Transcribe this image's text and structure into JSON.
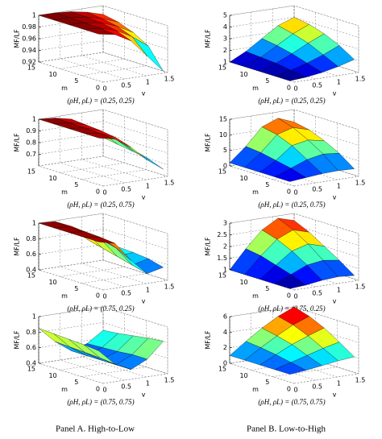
{
  "chart_data": [
    {
      "type": "surface",
      "caption": "(ρH, ρL) = (0.25, 0.25)",
      "zlabel": "MF/LF",
      "xlabel": "v",
      "ylabel": "m",
      "x": [
        0,
        0.375,
        0.75,
        1.125,
        1.5
      ],
      "y": [
        1,
        4.5,
        8,
        11.5,
        15
      ],
      "z": [
        [
          1,
          0.995,
          0.98,
          0.95,
          0.92
        ],
        [
          1,
          0.998,
          0.99,
          0.975,
          0.955
        ],
        [
          1,
          0.999,
          0.995,
          0.985,
          0.97
        ],
        [
          1,
          1,
          0.997,
          0.99,
          0.98
        ],
        [
          1,
          1,
          0.998,
          0.993,
          0.985
        ]
      ],
      "xlim": [
        0,
        1.5
      ],
      "xticks": [
        0,
        0.5,
        1,
        1.5
      ],
      "ylim": [
        0,
        15
      ],
      "yticks": [
        0,
        5,
        10,
        15
      ],
      "zlim": [
        0.92,
        1
      ],
      "zticks": [
        0.92,
        0.94,
        0.96,
        0.98,
        1
      ],
      "colormap": "jet",
      "grid": true
    },
    {
      "type": "surface",
      "caption": "(ρH, ρL) = (0.25, 0.25)",
      "zlabel": "MF/LF",
      "xlabel": "v",
      "ylabel": "m",
      "x": [
        0,
        0.375,
        0.75,
        1.125,
        1.5
      ],
      "y": [
        1,
        4.5,
        8,
        11.5,
        15
      ],
      "z": [
        [
          1,
          1.1,
          1.3,
          1.6,
          2
        ],
        [
          1,
          1.3,
          1.7,
          2.2,
          2.8
        ],
        [
          1,
          1.5,
          2.1,
          2.8,
          3.4
        ],
        [
          1,
          1.6,
          2.4,
          3.2,
          3.8
        ],
        [
          1,
          1.7,
          2.6,
          3.5,
          4
        ]
      ],
      "xlim": [
        0,
        1.5
      ],
      "xticks": [
        0,
        0.5,
        1,
        1.5
      ],
      "ylim": [
        0,
        15
      ],
      "yticks": [
        0,
        5,
        10,
        15
      ],
      "zlim": [
        1,
        5
      ],
      "zticks": [
        1,
        2,
        3,
        4,
        5
      ],
      "colormap": "jet",
      "grid": true
    },
    {
      "type": "surface",
      "caption": "(ρH, ρL) = (0.25, 0.75)",
      "zlabel": "MF/LF",
      "xlabel": "v",
      "ylabel": "m",
      "x": [
        0,
        0.375,
        0.75,
        1.125,
        1.5
      ],
      "y": [
        1,
        4.5,
        8,
        11.5,
        15
      ],
      "z": [
        [
          1,
          0.97,
          0.88,
          0.75,
          0.65
        ],
        [
          1,
          0.98,
          0.92,
          0.8,
          0.7
        ],
        [
          1,
          0.985,
          0.94,
          0.84,
          0.72
        ],
        [
          1,
          0.99,
          0.95,
          0.86,
          0.74
        ],
        [
          1,
          0.99,
          0.96,
          0.88,
          0.76
        ]
      ],
      "xlim": [
        0,
        1.5
      ],
      "xticks": [
        0,
        0.5,
        1,
        1.5
      ],
      "ylim": [
        0,
        15
      ],
      "yticks": [
        0,
        5,
        10,
        15
      ],
      "zlim": [
        0.6,
        1
      ],
      "zticks": [
        0.7,
        0.8,
        0.9,
        1
      ],
      "colormap": "jet",
      "grid": true
    },
    {
      "type": "surface",
      "caption": "(ρH, ρL) = (0.25, 0.75)",
      "zlabel": "MF/LF",
      "xlabel": "v",
      "ylabel": "m",
      "x": [
        0,
        0.375,
        0.75,
        1.125,
        1.5
      ],
      "y": [
        1,
        4.5,
        8,
        11.5,
        15
      ],
      "z": [
        [
          1,
          1.5,
          2,
          2.2,
          2
        ],
        [
          1,
          3,
          5,
          6,
          5.5
        ],
        [
          1,
          4,
          8,
          9,
          8
        ],
        [
          1,
          5,
          10,
          11.5,
          10
        ],
        [
          1,
          5.5,
          11,
          13,
          11
        ]
      ],
      "xlim": [
        0,
        1.5
      ],
      "xticks": [
        0,
        0.5,
        1,
        1.5
      ],
      "ylim": [
        0,
        15
      ],
      "yticks": [
        0,
        5,
        10,
        15
      ],
      "zlim": [
        0,
        15
      ],
      "zticks": [
        0,
        5,
        10,
        15
      ],
      "colormap": "jet",
      "grid": true
    },
    {
      "type": "surface",
      "caption": "(ρH, ρL) = (0.75, 0.25)",
      "zlabel": "MF/LF",
      "xlabel": "v",
      "ylabel": "m",
      "x": [
        0,
        0.375,
        0.75,
        1.125,
        1.5
      ],
      "y": [
        1,
        4.5,
        8,
        11.5,
        15
      ],
      "z": [
        [
          1,
          0.95,
          0.7,
          0.5,
          0.55
        ],
        [
          1,
          0.97,
          0.8,
          0.55,
          0.6
        ],
        [
          1,
          0.98,
          0.85,
          0.6,
          0.62
        ],
        [
          1,
          0.98,
          0.88,
          0.65,
          0.63
        ],
        [
          1,
          0.99,
          0.9,
          0.7,
          0.65
        ]
      ],
      "xlim": [
        0,
        1.5
      ],
      "xticks": [
        0,
        0.5,
        1,
        1.5
      ],
      "ylim": [
        0,
        15
      ],
      "yticks": [
        0,
        5,
        10,
        15
      ],
      "zlim": [
        0.4,
        1
      ],
      "zticks": [
        0.4,
        0.6,
        0.8,
        1
      ],
      "colormap": "jet",
      "grid": true
    },
    {
      "type": "surface",
      "caption": "(ρH, ρL) = (0.75, 0.25)",
      "zlabel": "MF/LF",
      "xlabel": "v",
      "ylabel": "m",
      "x": [
        0,
        0.375,
        0.75,
        1.125,
        1.5
      ],
      "y": [
        1,
        4.5,
        8,
        11.5,
        15
      ],
      "z": [
        [
          1,
          1.05,
          1.15,
          1.2,
          1.15
        ],
        [
          1,
          1.3,
          1.6,
          1.7,
          1.6
        ],
        [
          1,
          1.5,
          2,
          2.2,
          2
        ],
        [
          1,
          1.7,
          2.3,
          2.6,
          2.4
        ],
        [
          1,
          1.8,
          2.5,
          2.9,
          2.7
        ]
      ],
      "xlim": [
        0,
        1.5
      ],
      "xticks": [
        0,
        0.5,
        1,
        1.5
      ],
      "ylim": [
        0,
        15
      ],
      "yticks": [
        0,
        5,
        10,
        15
      ],
      "zlim": [
        1,
        3
      ],
      "zticks": [
        1,
        1.5,
        2,
        2.5,
        3
      ],
      "colormap": "jet",
      "grid": true
    },
    {
      "type": "surface",
      "caption": "(ρH, ρL) = (0.75, 0.75)",
      "zlabel": "MF/LF",
      "xlabel": "v",
      "ylabel": "m",
      "x": [
        0,
        0.375,
        0.75,
        1.125,
        1.5
      ],
      "y": [
        1,
        4.5,
        8,
        11.5,
        15
      ],
      "z": [
        [
          0.8,
          0.6,
          0.5,
          0.6,
          0.8
        ],
        [
          0.82,
          0.62,
          0.5,
          0.6,
          0.78
        ],
        [
          0.83,
          0.63,
          0.5,
          0.58,
          0.75
        ],
        [
          0.84,
          0.64,
          0.5,
          0.57,
          0.72
        ],
        [
          0.85,
          0.65,
          0.5,
          0.56,
          0.7
        ]
      ],
      "xlim": [
        0,
        1.5
      ],
      "xticks": [
        0,
        0.5,
        1,
        1.5
      ],
      "ylim": [
        0,
        15
      ],
      "yticks": [
        0,
        5,
        10,
        15
      ],
      "zlim": [
        0.4,
        1
      ],
      "zticks": [
        0.4,
        0.6,
        0.8,
        1
      ],
      "colormap": "jet",
      "grid": true
    },
    {
      "type": "surface",
      "caption": "(ρH, ρL) = (0.75, 0.75)",
      "zlabel": "MF/LF",
      "xlabel": "v",
      "ylabel": "m",
      "x": [
        0,
        0.375,
        0.75,
        1.125,
        1.5
      ],
      "y": [
        1,
        4.5,
        8,
        11.5,
        15
      ],
      "z": [
        [
          1,
          1.2,
          1.5,
          1.8,
          2
        ],
        [
          1,
          1.6,
          2.2,
          2.8,
          3.3
        ],
        [
          1,
          2,
          3,
          3.8,
          4.5
        ],
        [
          1,
          2.3,
          3.5,
          4.6,
          5.4
        ],
        [
          1,
          2.5,
          3.9,
          5.1,
          6
        ]
      ],
      "xlim": [
        0,
        1.5
      ],
      "xticks": [
        0,
        0.5,
        1,
        1.5
      ],
      "ylim": [
        0,
        15
      ],
      "yticks": [
        0,
        5,
        10,
        15
      ],
      "zlim": [
        0,
        6
      ],
      "zticks": [
        0,
        2,
        4,
        6
      ],
      "colormap": "jet",
      "grid": true
    }
  ],
  "panels": [
    "Panel A. High-to-Low",
    "Panel B. Low-to-High"
  ]
}
